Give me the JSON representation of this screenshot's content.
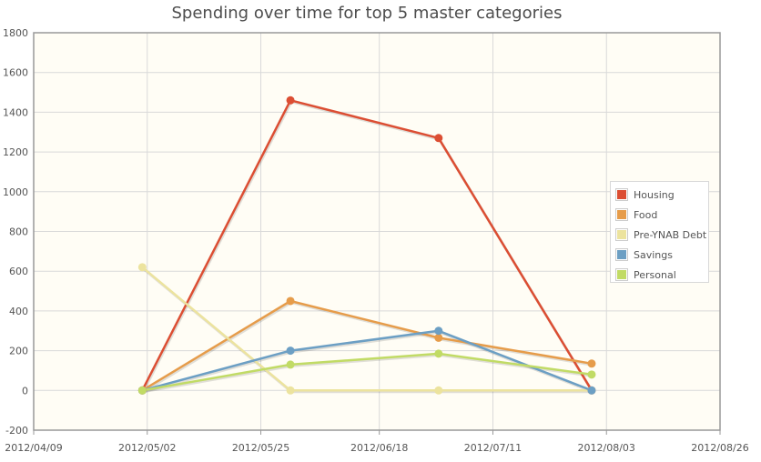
{
  "chart_data": {
    "type": "line",
    "title": "Spending over time for top 5 master categories",
    "xlabel": "",
    "ylabel": "",
    "x_tick_labels": [
      "2012/04/09",
      "2012/05/02",
      "2012/05/25",
      "2012/06/18",
      "2012/07/11",
      "2012/08/03",
      "2012/08/26"
    ],
    "y_tick_labels": [
      "-200",
      "0",
      "200",
      "400",
      "600",
      "800",
      "1000",
      "1200",
      "1400",
      "1600",
      "1800"
    ],
    "ylim": [
      -200,
      1800
    ],
    "xlim": [
      "2012/04/09",
      "2012/08/26"
    ],
    "grid": true,
    "legend_position": "right",
    "x": [
      "2012/05/01",
      "2012/05/31",
      "2012/06/30",
      "2012/07/31"
    ],
    "series": [
      {
        "name": "Housing",
        "color": "#dc4e33",
        "values": [
          0,
          1460,
          1270,
          0
        ]
      },
      {
        "name": "Food",
        "color": "#e69c4a",
        "values": [
          0,
          450,
          265,
          135
        ]
      },
      {
        "name": "Pre-YNAB Debt",
        "color": "#ece39e",
        "values": [
          620,
          0,
          0,
          0
        ]
      },
      {
        "name": "Savings",
        "color": "#6c9fc4",
        "values": [
          0,
          200,
          300,
          0
        ]
      },
      {
        "name": "Personal",
        "color": "#c1db65",
        "values": [
          0,
          130,
          185,
          80
        ]
      }
    ]
  }
}
